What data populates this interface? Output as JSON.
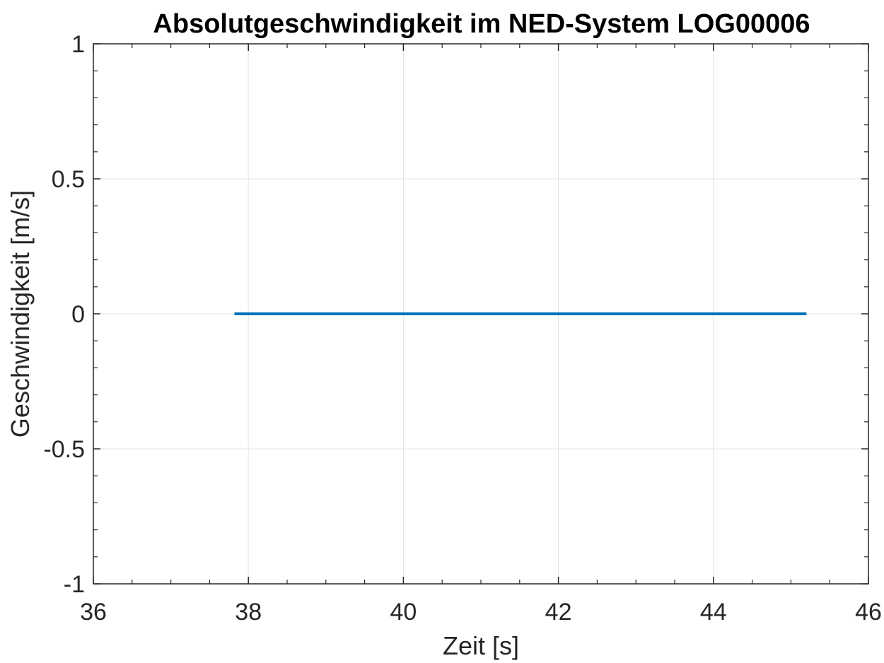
{
  "chart_data": {
    "type": "line",
    "title": "Absolutgeschwindigkeit im NED-System LOG00006",
    "xlabel": "Zeit [s]",
    "ylabel": "Geschwindigkeit [m/s]",
    "xlim": [
      36,
      46
    ],
    "ylim": [
      -1,
      1
    ],
    "x_ticks": [
      36,
      38,
      40,
      42,
      44,
      46
    ],
    "x_tick_labels": [
      "36",
      "38",
      "40",
      "42",
      "44",
      "46"
    ],
    "y_ticks": [
      1,
      0.5,
      0,
      -0.5,
      -1
    ],
    "y_tick_labels": [
      "1",
      "0.5",
      "0",
      "-0.5",
      "-1"
    ],
    "x_minor_step": 0.5,
    "y_minor_step": 0.1,
    "grid": true,
    "series": [
      {
        "color": "#0072BD",
        "x": [
          37.82,
          45.2
        ],
        "y": [
          0,
          0
        ]
      }
    ],
    "colors": {
      "grid": "#e3e3e3",
      "axis": "#262626",
      "background": "#ffffff"
    }
  }
}
